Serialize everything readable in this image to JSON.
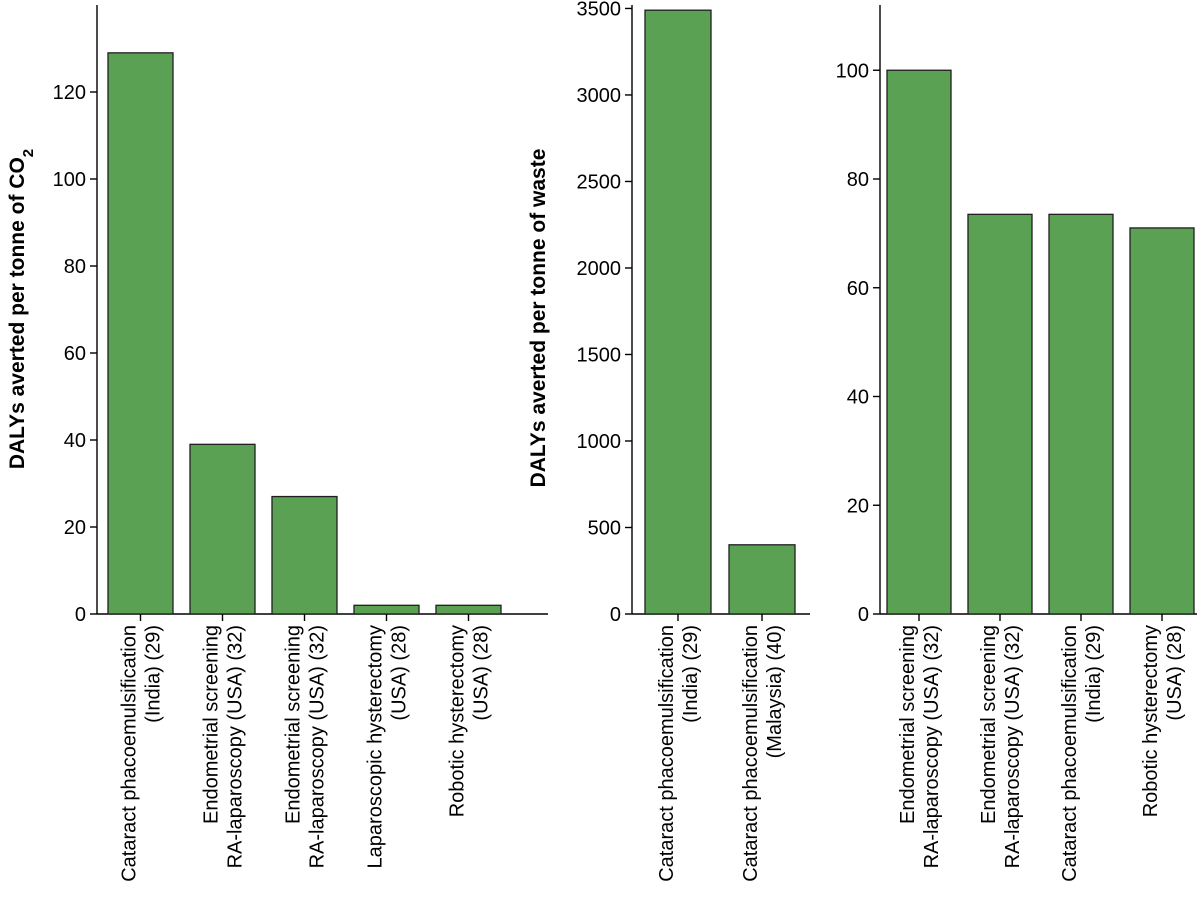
{
  "colors": {
    "bar": "#5aa153",
    "axis": "#000000"
  },
  "chart_data": [
    {
      "type": "bar",
      "title": "",
      "xlabel": "",
      "ylabel": "DALYs averted per tonne of CO",
      "ylabel_subscript": "2",
      "ylim": [
        0,
        140
      ],
      "yticks": [
        0,
        20,
        40,
        60,
        80,
        100,
        120
      ],
      "categories": [
        [
          "Cataract phacoemulsification",
          "(India) (29)"
        ],
        [
          "Endometrial screening",
          "RA-laparoscopy (USA) (32)"
        ],
        [
          "Endometrial screening",
          "RA-laparoscopy (USA) (32)"
        ],
        [
          "Laparoscopic hysterectomy",
          "(USA) (28)"
        ],
        [
          "Robotic hysterectomy",
          "(USA) (28)"
        ]
      ],
      "values": [
        129,
        39,
        27,
        2,
        2
      ]
    },
    {
      "type": "bar",
      "title": "",
      "xlabel": "",
      "ylabel": "DALYs averted per tonne of waste",
      "ylim": [
        0,
        3520
      ],
      "yticks": [
        0,
        500,
        1000,
        1500,
        2000,
        2500,
        3000,
        3500
      ],
      "categories": [
        [
          "Cataract phacoemulsification",
          "(India) (29)"
        ],
        [
          "Cataract phacoemulsification",
          "(Malaysia) (40)"
        ]
      ],
      "values": [
        3490,
        400
      ]
    },
    {
      "type": "bar",
      "title": "",
      "xlabel": "",
      "ylabel": "",
      "ylim": [
        0,
        112
      ],
      "yticks": [
        0,
        20,
        40,
        60,
        80,
        100
      ],
      "categories": [
        [
          "Endometrial screening",
          "RA-laparoscopy (USA) (32)"
        ],
        [
          "Endometrial screening",
          "RA-laparoscopy (USA) (32)"
        ],
        [
          "Cataract phacoemulsification",
          "(India) (29)"
        ],
        [
          "Robotic hysterectomy",
          "(USA) (28)"
        ]
      ],
      "values": [
        100,
        73.5,
        73.5,
        71
      ]
    }
  ]
}
